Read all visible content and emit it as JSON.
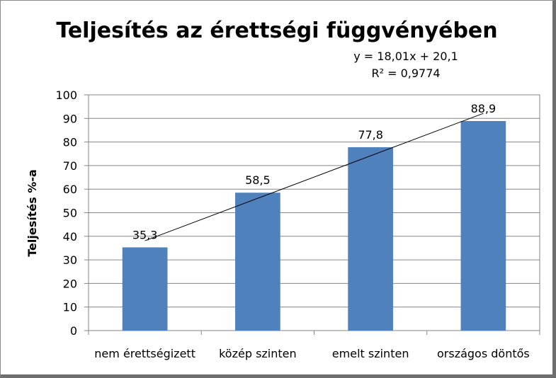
{
  "chart_data": {
    "type": "bar",
    "title": "Teljesítés az érettségi függvényében",
    "xlabel": "",
    "ylabel": "Teljesítés %-a",
    "categories": [
      "nem érettségizett",
      "közép szinten",
      "emelt szinten",
      "országos döntős"
    ],
    "values": [
      35.3,
      58.5,
      77.8,
      88.9
    ],
    "data_labels": [
      "35,3",
      "58,5",
      "77,8",
      "88,9"
    ],
    "ylim": [
      0,
      100
    ],
    "ytick_step": 10,
    "yticks": [
      "0",
      "10",
      "20",
      "30",
      "40",
      "50",
      "60",
      "70",
      "80",
      "90",
      "100"
    ],
    "grid": true,
    "legend": "none",
    "bar_color": "#4f81bd",
    "trendline": {
      "type": "linear",
      "slope": 18.01,
      "intercept": 20.1,
      "equation": "y = 18,01x + 20,1",
      "r_squared": "R² = 0,9774",
      "color": "#000000"
    }
  }
}
